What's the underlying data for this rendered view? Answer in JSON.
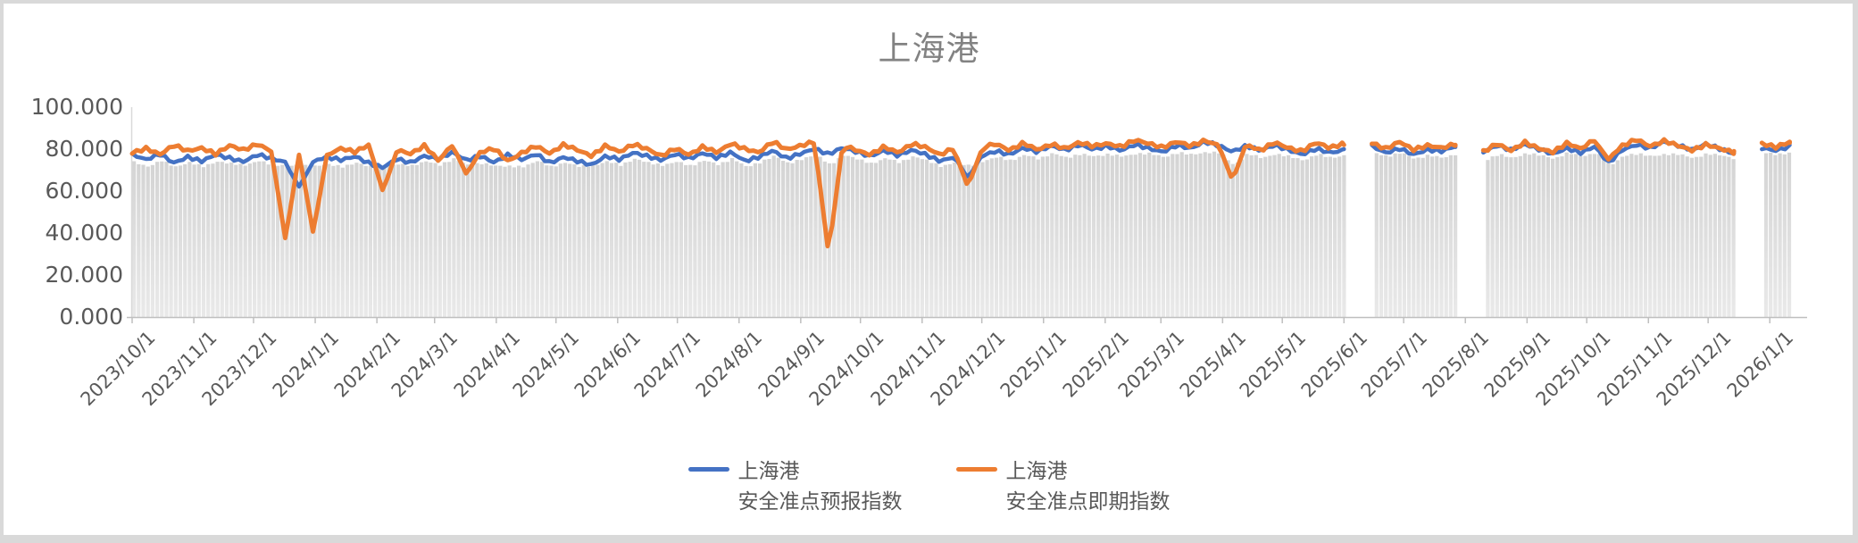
{
  "frame": {
    "border_color": "#d9d9d9",
    "background": "#ffffff"
  },
  "chart_data": {
    "type": "line",
    "title": "上海港",
    "legend_position": "bottom",
    "grid": "off",
    "y_axis": {
      "min": 0,
      "max": 100,
      "tick_step": 20,
      "ticks": [
        {
          "label": "100.000",
          "value": 100
        },
        {
          "label": "80.000",
          "value": 80
        },
        {
          "label": "60.000",
          "value": 60
        },
        {
          "label": "40.000",
          "value": 40
        },
        {
          "label": "20.000",
          "value": 20
        },
        {
          "label": "0.000",
          "value": 0
        }
      ]
    },
    "x_axis": {
      "start_date": "2023/10/1",
      "end_date": "2026/1/20",
      "label_rotation_deg": 45,
      "ticks": [
        {
          "label": "2023/10/1",
          "day": 0
        },
        {
          "label": "2023/11/1",
          "day": 31
        },
        {
          "label": "2023/12/1",
          "day": 61
        },
        {
          "label": "2024/1/1",
          "day": 92
        },
        {
          "label": "2024/2/1",
          "day": 123
        },
        {
          "label": "2024/3/1",
          "day": 152
        },
        {
          "label": "2024/4/1",
          "day": 183
        },
        {
          "label": "2024/5/1",
          "day": 213
        },
        {
          "label": "2024/6/1",
          "day": 244
        },
        {
          "label": "2024/7/1",
          "day": 274
        },
        {
          "label": "2024/8/1",
          "day": 305
        },
        {
          "label": "2024/9/1",
          "day": 336
        },
        {
          "label": "2024/10/1",
          "day": 366
        },
        {
          "label": "2024/11/1",
          "day": 397
        },
        {
          "label": "2024/12/1",
          "day": 427
        },
        {
          "label": "2025/1/1",
          "day": 458
        },
        {
          "label": "2025/2/1",
          "day": 489
        },
        {
          "label": "2025/3/1",
          "day": 517
        },
        {
          "label": "2025/4/1",
          "day": 548
        },
        {
          "label": "2025/5/1",
          "day": 578
        },
        {
          "label": "2025/6/1",
          "day": 609
        },
        {
          "label": "2025/7/1",
          "day": 639
        },
        {
          "label": "2025/8/1",
          "day": 670
        },
        {
          "label": "2025/9/1",
          "day": 701
        },
        {
          "label": "2025/10/1",
          "day": 731
        },
        {
          "label": "2025/11/1",
          "day": 762
        },
        {
          "label": "2025/12/1",
          "day": 792
        },
        {
          "label": "2026/1/1",
          "day": 823
        }
      ]
    },
    "sample_step_days": 7,
    "noise_amplitude": 1.5,
    "data_gaps_days": [
      [
        612,
        620
      ],
      [
        665,
        679
      ],
      [
        805,
        819
      ]
    ],
    "series": [
      {
        "name": "上海港 安全准点预报指数",
        "color": "#4472C4",
        "values": [
          77,
          75,
          78,
          74,
          77,
          75,
          78,
          76,
          74,
          77,
          75,
          73,
          62,
          74,
          76,
          75,
          77,
          74,
          72,
          76,
          74,
          77,
          75,
          78,
          74,
          76,
          73,
          77,
          75,
          78,
          74,
          77,
          75,
          73,
          77,
          75,
          78,
          76,
          74,
          77,
          75,
          78,
          76,
          79,
          75,
          77,
          80,
          76,
          78,
          80,
          77,
          80,
          78,
          76,
          79,
          77,
          80,
          78,
          75,
          77,
          66,
          77,
          79,
          77,
          80,
          78,
          81,
          79,
          82,
          80,
          82,
          80,
          83,
          81,
          79,
          82,
          80,
          83,
          81,
          78,
          81,
          79,
          82,
          80,
          78,
          81,
          79,
          80,
          null,
          82,
          79,
          81,
          78,
          80,
          79,
          81,
          null,
          78,
          81,
          79,
          82,
          80,
          78,
          81,
          79,
          82,
          74,
          80,
          82,
          80,
          83,
          81,
          79,
          82,
          80,
          78,
          null,
          81,
          80,
          82
        ]
      },
      {
        "name": "上海港 安全准点即期指数",
        "color": "#ED7D31",
        "values": [
          79,
          81,
          78,
          82,
          79,
          80,
          77,
          81,
          79,
          82,
          79,
          37,
          78,
          40,
          78,
          81,
          79,
          82,
          60,
          79,
          77,
          81,
          74,
          82,
          68,
          79,
          81,
          75,
          79,
          82,
          78,
          82,
          79,
          76,
          81,
          78,
          82,
          80,
          77,
          81,
          78,
          82,
          79,
          83,
          80,
          78,
          83,
          79,
          81,
          83,
          30,
          82,
          80,
          78,
          82,
          79,
          83,
          81,
          77,
          80,
          62,
          80,
          82,
          79,
          83,
          80,
          83,
          81,
          84,
          82,
          83,
          81,
          84,
          82,
          80,
          83,
          81,
          84,
          82,
          65,
          83,
          80,
          84,
          81,
          79,
          83,
          80,
          82,
          null,
          83,
          80,
          83,
          79,
          81,
          80,
          82,
          null,
          79,
          83,
          80,
          84,
          81,
          79,
          83,
          80,
          84,
          75,
          81,
          84,
          81,
          84,
          82,
          80,
          83,
          81,
          79,
          null,
          83,
          81,
          83
        ]
      }
    ],
    "background_bars": {
      "description": "light gray daily columns behind the lines, tops just below line level, absent in data gaps",
      "color_top": "#d4d4d4",
      "color_bottom": "#e9e9e9",
      "value_rule": "clamp(min(series)-3, 72, 78)"
    },
    "axis_color": "#bfbfbf"
  },
  "legend": {
    "items": [
      {
        "line1": "上海港",
        "line2": "安全准点预报指数",
        "color": "#4472C4"
      },
      {
        "line1": "上海港",
        "line2": "安全准点即期指数",
        "color": "#ED7D31"
      }
    ]
  }
}
